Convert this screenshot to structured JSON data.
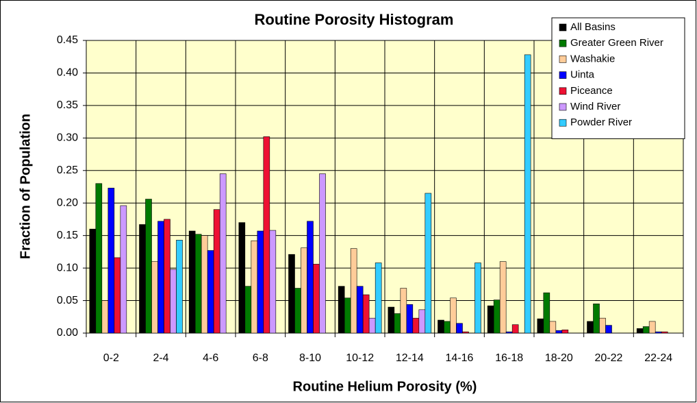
{
  "chart_data": {
    "type": "bar",
    "title": "Routine Porosity Histogram",
    "x_label": "Routine Helium Porosity (%)",
    "y_label": "Fraction of Population",
    "categories": [
      "0-2",
      "2-4",
      "4-6",
      "6-8",
      "8-10",
      "10-12",
      "12-14",
      "14-16",
      "16-18",
      "18-20",
      "20-22",
      "22-24"
    ],
    "series": [
      {
        "name": "All Basins",
        "color": "#000000",
        "values": [
          0.16,
          0.167,
          0.157,
          0.17,
          0.121,
          0.072,
          0.04,
          0.02,
          0.042,
          0.022,
          0.018,
          0.007
        ]
      },
      {
        "name": "Greater Green River",
        "color": "#007a00",
        "values": [
          0.23,
          0.206,
          0.152,
          0.072,
          0.069,
          0.054,
          0.03,
          0.018,
          0.051,
          0.062,
          0.045,
          0.01
        ]
      },
      {
        "name": "Washakie",
        "color": "#ffcc99",
        "values": [
          0.05,
          0.11,
          0.15,
          0.142,
          0.131,
          0.13,
          0.069,
          0.054,
          0.11,
          0.018,
          0.023,
          0.018
        ]
      },
      {
        "name": "Uinta",
        "color": "#0000ff",
        "values": [
          0.223,
          0.172,
          0.127,
          0.157,
          0.172,
          0.072,
          0.044,
          0.015,
          0.002,
          0.004,
          0.012,
          0.002
        ]
      },
      {
        "name": "Piceance",
        "color": "#ee1133",
        "values": [
          0.116,
          0.175,
          0.19,
          0.302,
          0.106,
          0.059,
          0.023,
          0.002,
          0.013,
          0.005,
          0,
          0.002
        ]
      },
      {
        "name": "Wind River",
        "color": "#cc99ff",
        "values": [
          0.196,
          0.098,
          0.245,
          0.158,
          0.245,
          0.023,
          0.036,
          0,
          0,
          0,
          0,
          0
        ]
      },
      {
        "name": "Powder River",
        "color": "#33ccff",
        "values": [
          0,
          0.143,
          0,
          0,
          0,
          0.108,
          0.215,
          0.108,
          0.428,
          0,
          0,
          0
        ]
      }
    ],
    "ylim": [
      0,
      0.45
    ],
    "yticks": [
      {
        "value": 0,
        "label": "0.00"
      },
      0.05,
      {
        "value": 0.1,
        "label": "0.10"
      },
      0.15,
      {
        "value": 0.2,
        "label": "0.20"
      },
      0.25,
      {
        "value": 0.3,
        "label": "0.30"
      },
      0.35,
      {
        "value": 0.4,
        "label": "0.40"
      },
      0.45
    ],
    "grid": true,
    "legend": "upper right"
  }
}
